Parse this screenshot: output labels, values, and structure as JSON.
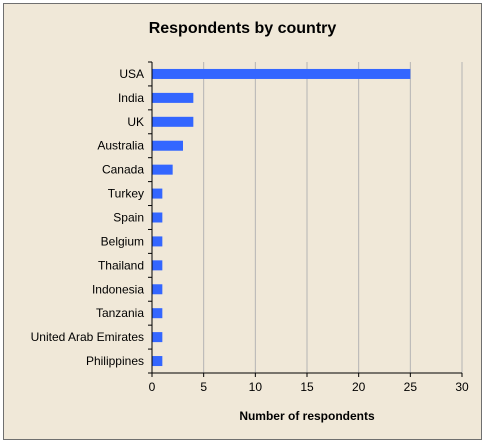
{
  "chart_data": {
    "type": "bar",
    "orientation": "horizontal",
    "title": "Respondents by country",
    "xlabel": "Number of respondents",
    "ylabel": "",
    "xlim": [
      0,
      30
    ],
    "xticks": [
      0,
      5,
      10,
      15,
      20,
      25,
      30
    ],
    "grid": true,
    "legend": "none",
    "categories": [
      "USA",
      "India",
      "UK",
      "Australia",
      "Canada",
      "Turkey",
      "Spain",
      "Belgium",
      "Thailand",
      "Indonesia",
      "Tanzania",
      "United Arab Emirates",
      "Philippines"
    ],
    "values": [
      25,
      4,
      4,
      3,
      2,
      1,
      1,
      1,
      1,
      1,
      1,
      1,
      1
    ],
    "colors": {
      "bar": "#3366ff",
      "background": "#f0e8d8",
      "grid": "#b4b4b4"
    }
  }
}
